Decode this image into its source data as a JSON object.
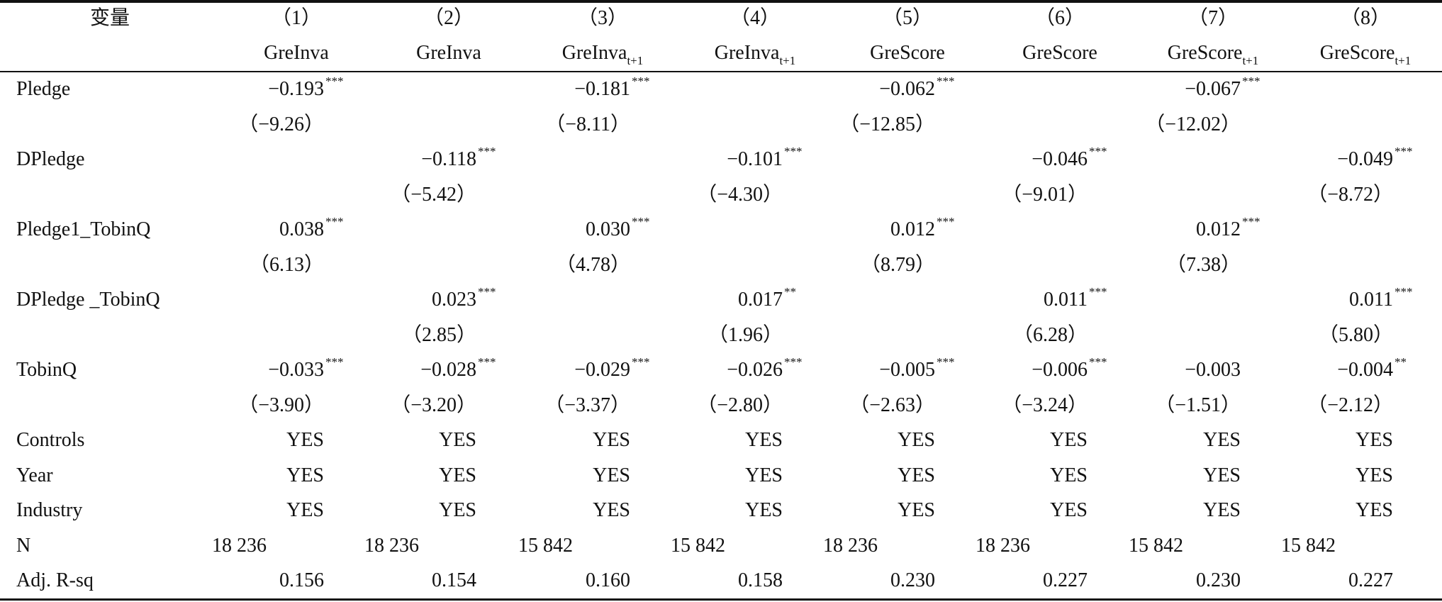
{
  "table": {
    "header": {
      "variable": "变量",
      "columns": [
        {
          "number": "（1）",
          "name": "GreInva"
        },
        {
          "number": "（2）",
          "name": "GreInva"
        },
        {
          "number": "（3）",
          "name": "GreInva",
          "subscript": "t+1"
        },
        {
          "number": "（4）",
          "name": "GreInva",
          "subscript": "t+1"
        },
        {
          "number": "（5）",
          "name": "GreScore"
        },
        {
          "number": "（6）",
          "name": "GreScore"
        },
        {
          "number": "（7）",
          "name": "GreScore",
          "subscript": "t+1"
        },
        {
          "number": "（8）",
          "name": "GreScore",
          "subscript": "t+1"
        }
      ]
    },
    "rows": [
      {
        "label": "Pledge",
        "cells": [
          {
            "value": "−0.193",
            "stars": "***",
            "t": "（−9.26）"
          },
          null,
          {
            "value": "−0.181",
            "stars": "***",
            "t": "（−8.11）"
          },
          null,
          {
            "value": "−0.062",
            "stars": "***",
            "t": "（−12.85）"
          },
          null,
          {
            "value": "−0.067",
            "stars": "***",
            "t": "（−12.02）"
          },
          null
        ]
      },
      {
        "label": "DPledge",
        "cells": [
          null,
          {
            "value": "−0.118",
            "stars": "***",
            "t": "（−5.42）"
          },
          null,
          {
            "value": "−0.101",
            "stars": "***",
            "t": "（−4.30）"
          },
          null,
          {
            "value": "−0.046",
            "stars": "***",
            "t": "（−9.01）"
          },
          null,
          {
            "value": "−0.049",
            "stars": "***",
            "t": "（−8.72）"
          }
        ]
      },
      {
        "label": "Pledge1_TobinQ",
        "cells": [
          {
            "value": "0.038",
            "stars": "***",
            "t": "（6.13）"
          },
          null,
          {
            "value": "0.030",
            "stars": "***",
            "t": "（4.78）"
          },
          null,
          {
            "value": "0.012",
            "stars": "***",
            "t": "（8.79）"
          },
          null,
          {
            "value": "0.012",
            "stars": "***",
            "t": "（7.38）"
          },
          null
        ]
      },
      {
        "label": "DPledge _TobinQ",
        "cells": [
          null,
          {
            "value": "0.023",
            "stars": "***",
            "t": "（2.85）"
          },
          null,
          {
            "value": "0.017",
            "stars": "**",
            "t": "（1.96）"
          },
          null,
          {
            "value": "0.011",
            "stars": "***",
            "t": "（6.28）"
          },
          null,
          {
            "value": "0.011",
            "stars": "***",
            "t": "（5.80）"
          }
        ]
      },
      {
        "label": "TobinQ",
        "cells": [
          {
            "value": "−0.033",
            "stars": "***",
            "t": "（−3.90）"
          },
          {
            "value": "−0.028",
            "stars": "***",
            "t": "（−3.20）"
          },
          {
            "value": "−0.029",
            "stars": "***",
            "t": "（−3.37）"
          },
          {
            "value": "−0.026",
            "stars": "***",
            "t": "（−2.80）"
          },
          {
            "value": "−0.005",
            "stars": "***",
            "t": "（−2.63）"
          },
          {
            "value": "−0.006",
            "stars": "***",
            "t": "（−3.24）"
          },
          {
            "value": "−0.003",
            "t": "（−1.51）"
          },
          {
            "value": "−0.004",
            "stars": "**",
            "t": "（−2.12）"
          }
        ]
      },
      {
        "label": "Controls",
        "cells": [
          {
            "value": "YES"
          },
          {
            "value": "YES"
          },
          {
            "value": "YES"
          },
          {
            "value": "YES"
          },
          {
            "value": "YES"
          },
          {
            "value": "YES"
          },
          {
            "value": "YES"
          },
          {
            "value": "YES"
          }
        ]
      },
      {
        "label": "Year",
        "cells": [
          {
            "value": "YES"
          },
          {
            "value": "YES"
          },
          {
            "value": "YES"
          },
          {
            "value": "YES"
          },
          {
            "value": "YES"
          },
          {
            "value": "YES"
          },
          {
            "value": "YES"
          },
          {
            "value": "YES"
          }
        ]
      },
      {
        "label": "Industry",
        "cells": [
          {
            "value": "YES"
          },
          {
            "value": "YES"
          },
          {
            "value": "YES"
          },
          {
            "value": "YES"
          },
          {
            "value": "YES"
          },
          {
            "value": "YES"
          },
          {
            "value": "YES"
          },
          {
            "value": "YES"
          }
        ]
      },
      {
        "label": "N",
        "cells": [
          {
            "value": "18 236"
          },
          {
            "value": "18 236"
          },
          {
            "value": "15 842"
          },
          {
            "value": "15 842"
          },
          {
            "value": "18 236"
          },
          {
            "value": "18 236"
          },
          {
            "value": "15 842"
          },
          {
            "value": "15 842"
          }
        ]
      },
      {
        "label": "Adj. R-sq",
        "cells": [
          {
            "value": "0.156"
          },
          {
            "value": "0.154"
          },
          {
            "value": "0.160"
          },
          {
            "value": "0.158"
          },
          {
            "value": "0.230"
          },
          {
            "value": "0.227"
          },
          {
            "value": "0.230"
          },
          {
            "value": "0.227"
          }
        ]
      }
    ]
  }
}
